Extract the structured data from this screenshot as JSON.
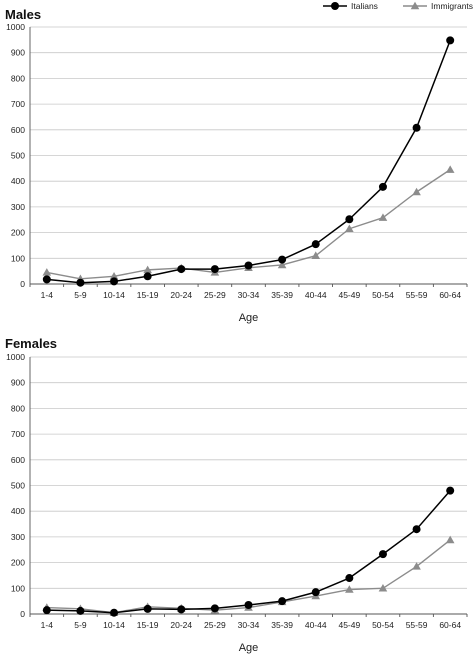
{
  "chart_data": [
    {
      "type": "line",
      "title": "Males",
      "xlabel": "Age",
      "ylabel": "",
      "ylim": [
        0,
        1000
      ],
      "yticks": [
        0,
        100,
        200,
        300,
        400,
        500,
        600,
        700,
        800,
        900,
        1000
      ],
      "grid": true,
      "legend": "top-right",
      "categories": [
        "1-4",
        "5-9",
        "10-14",
        "15-19",
        "20-24",
        "25-29",
        "30-34",
        "35-39",
        "40-44",
        "45-49",
        "50-54",
        "55-59",
        "60-64"
      ],
      "series": [
        {
          "name": "Italians",
          "marker": "circle",
          "color": "#000000",
          "values": [
            18,
            5,
            10,
            30,
            58,
            58,
            72,
            95,
            155,
            252,
            378,
            608,
            948
          ]
        },
        {
          "name": "Immigrants",
          "marker": "triangle",
          "color": "#8c8c8c",
          "values": [
            45,
            20,
            30,
            55,
            62,
            45,
            63,
            74,
            110,
            215,
            258,
            358,
            445
          ]
        }
      ]
    },
    {
      "type": "line",
      "title": "Females",
      "xlabel": "Age",
      "ylabel": "",
      "ylim": [
        0,
        1000
      ],
      "yticks": [
        0,
        100,
        200,
        300,
        400,
        500,
        600,
        700,
        800,
        900,
        1000
      ],
      "grid": true,
      "categories": [
        "1-4",
        "5-9",
        "10-14",
        "15-19",
        "20-24",
        "25-29",
        "30-34",
        "35-39",
        "40-44",
        "45-49",
        "50-54",
        "55-59",
        "60-64"
      ],
      "series": [
        {
          "name": "Italians",
          "marker": "circle",
          "color": "#000000",
          "values": [
            15,
            12,
            5,
            20,
            18,
            22,
            35,
            50,
            85,
            140,
            233,
            330,
            480
          ]
        },
        {
          "name": "Immigrants",
          "marker": "triangle",
          "color": "#8c8c8c",
          "values": [
            25,
            20,
            5,
            28,
            22,
            15,
            25,
            47,
            70,
            95,
            100,
            185,
            288
          ]
        }
      ]
    }
  ]
}
